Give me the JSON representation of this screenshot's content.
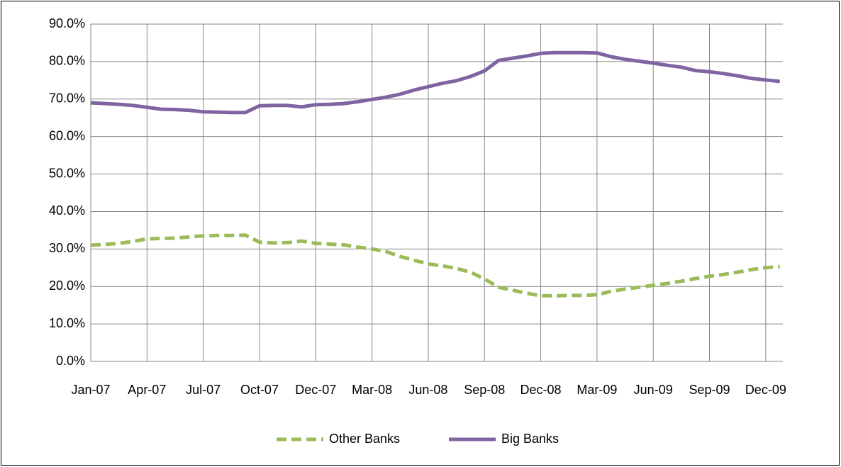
{
  "chart_data": {
    "type": "line",
    "categories": [
      "Jan-07",
      null,
      null,
      null,
      "Apr-07",
      null,
      null,
      null,
      "Jul-07",
      null,
      null,
      null,
      "Oct-07",
      null,
      null,
      null,
      "Dec-07",
      null,
      null,
      null,
      "Mar-08",
      null,
      null,
      null,
      "Jun-08",
      null,
      null,
      null,
      "Sep-08",
      null,
      null,
      null,
      "Dec-08",
      null,
      null,
      null,
      "Mar-09",
      null,
      null,
      null,
      "Jun-09",
      null,
      null,
      null,
      "Sep-09",
      null,
      null,
      null,
      "Dec-09",
      null
    ],
    "series": [
      {
        "name": "Other Banks",
        "color": "#9bbb59",
        "line_style": "dashed",
        "values": [
          31.0,
          31.2,
          31.5,
          32.0,
          32.7,
          32.8,
          32.9,
          33.2,
          33.5,
          33.6,
          33.6,
          33.7,
          31.8,
          31.6,
          31.7,
          32.1,
          31.5,
          31.3,
          31.1,
          30.5,
          30.0,
          29.3,
          28.0,
          27.0,
          26.0,
          25.5,
          24.8,
          23.8,
          22.0,
          19.8,
          19.0,
          18.2,
          17.5,
          17.5,
          17.6,
          17.6,
          17.8,
          18.7,
          19.3,
          19.8,
          20.3,
          20.8,
          21.4,
          22.1,
          22.7,
          23.2,
          23.8,
          24.5,
          25.0,
          25.3
        ]
      },
      {
        "name": "Big Banks",
        "color": "#8064a2",
        "line_style": "solid",
        "values": [
          69.0,
          68.8,
          68.6,
          68.3,
          67.8,
          67.3,
          67.2,
          67.0,
          66.6,
          66.5,
          66.4,
          66.4,
          68.2,
          68.3,
          68.3,
          67.9,
          68.5,
          68.6,
          68.8,
          69.3,
          69.9,
          70.5,
          71.3,
          72.4,
          73.3,
          74.2,
          74.9,
          76.0,
          77.5,
          80.3,
          80.9,
          81.5,
          82.2,
          82.4,
          82.4,
          82.4,
          82.3,
          81.3,
          80.6,
          80.1,
          79.6,
          79.0,
          78.5,
          77.6,
          77.3,
          76.8,
          76.2,
          75.5,
          75.1,
          74.7
        ]
      }
    ],
    "ylim": [
      0,
      90
    ],
    "yticks": [
      {
        "value": 0,
        "label": "0.0%"
      },
      {
        "value": 10,
        "label": "10.0%"
      },
      {
        "value": 20,
        "label": "20.0%"
      },
      {
        "value": 30,
        "label": "30.0%"
      },
      {
        "value": 40,
        "label": "40.0%"
      },
      {
        "value": 50,
        "label": "50.0%"
      },
      {
        "value": 60,
        "label": "60.0%"
      },
      {
        "value": 70,
        "label": "70.0%"
      },
      {
        "value": 80,
        "label": "80.0%"
      },
      {
        "value": 90,
        "label": "90.0%"
      }
    ],
    "grid": true,
    "legend": "bottom"
  }
}
